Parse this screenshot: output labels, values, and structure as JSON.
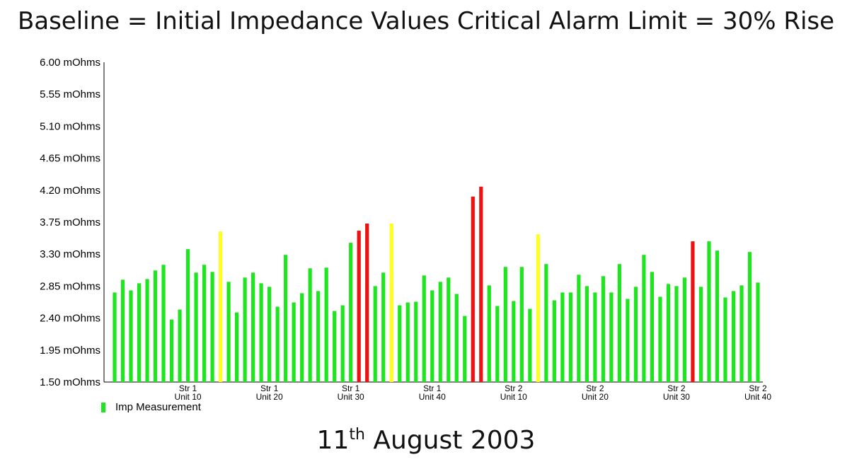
{
  "title": "Baseline = Initial Impedance Values Critical Alarm Limit = 30% Rise",
  "footer": {
    "day": "11",
    "suffix": "th",
    "rest": "August 2003"
  },
  "colors": {
    "normal": "#1ee61e",
    "warning": "#ffff22",
    "alarm": "#ee1111"
  },
  "chart_data": {
    "type": "bar",
    "title": "Baseline = Initial Impedance Values Critical Alarm Limit = 30% Rise",
    "ylim": [
      1.5,
      6.0
    ],
    "yticks": [
      {
        "value": 6.0,
        "label": "6.00 mOhms"
      },
      {
        "value": 5.55,
        "label": "5.55 mOhms"
      },
      {
        "value": 5.1,
        "label": "5.10 mOhms"
      },
      {
        "value": 4.65,
        "label": "4.65 mOhms"
      },
      {
        "value": 4.2,
        "label": "4.20 mOhms"
      },
      {
        "value": 3.75,
        "label": "3.75 mOhms"
      },
      {
        "value": 3.3,
        "label": "3.30 mOhms"
      },
      {
        "value": 2.85,
        "label": "2.85 mOhms"
      },
      {
        "value": 2.4,
        "label": "2.40 mOhms"
      },
      {
        "value": 1.95,
        "label": "1.95 mOhms"
      },
      {
        "value": 1.5,
        "label": "1.50 mOhms"
      }
    ],
    "xticks": [
      {
        "index": 9,
        "line1": "Str 1",
        "line2": "Unit 10"
      },
      {
        "index": 19,
        "line1": "Str 1",
        "line2": "Unit 20"
      },
      {
        "index": 29,
        "line1": "Str 1",
        "line2": "Unit 30"
      },
      {
        "index": 39,
        "line1": "Str 1",
        "line2": "Unit 40"
      },
      {
        "index": 49,
        "line1": "Str 2",
        "line2": "Unit 10"
      },
      {
        "index": 59,
        "line1": "Str 2",
        "line2": "Unit 20"
      },
      {
        "index": 69,
        "line1": "Str 2",
        "line2": "Unit 30"
      },
      {
        "index": 79,
        "line1": "Str 2",
        "line2": "Unit 40"
      }
    ],
    "legend": [
      {
        "label": "Imp Measurement",
        "status": "normal",
        "placement": "bottom-left"
      }
    ],
    "series": [
      {
        "name": "Imp Measurement",
        "values": [
          2.76,
          2.94,
          2.79,
          2.89,
          2.95,
          3.07,
          3.15,
          2.38,
          2.52,
          3.37,
          3.04,
          3.15,
          3.05,
          3.62,
          2.91,
          2.48,
          2.97,
          3.04,
          2.89,
          2.84,
          2.56,
          3.29,
          2.62,
          2.75,
          3.1,
          2.78,
          3.11,
          2.5,
          2.58,
          3.46,
          3.63,
          3.73,
          2.85,
          3.04,
          3.73,
          2.58,
          2.62,
          2.63,
          3.0,
          2.79,
          2.91,
          2.97,
          2.74,
          2.43,
          4.11,
          4.25,
          2.86,
          2.57,
          3.12,
          2.64,
          3.12,
          2.53,
          3.58,
          3.16,
          2.65,
          2.76,
          2.76,
          3.01,
          2.85,
          2.76,
          2.99,
          2.76,
          3.16,
          2.67,
          2.84,
          3.29,
          3.05,
          2.7,
          2.88,
          2.85,
          2.97,
          3.48,
          2.84,
          3.48,
          3.35,
          2.69,
          2.78,
          2.86,
          3.33,
          2.9
        ],
        "status": [
          "normal",
          "normal",
          "normal",
          "normal",
          "normal",
          "normal",
          "normal",
          "normal",
          "normal",
          "normal",
          "normal",
          "normal",
          "normal",
          "warning",
          "normal",
          "normal",
          "normal",
          "normal",
          "normal",
          "normal",
          "normal",
          "normal",
          "normal",
          "normal",
          "normal",
          "normal",
          "normal",
          "normal",
          "normal",
          "normal",
          "alarm",
          "alarm",
          "normal",
          "normal",
          "warning",
          "normal",
          "normal",
          "normal",
          "normal",
          "normal",
          "normal",
          "normal",
          "normal",
          "normal",
          "alarm",
          "alarm",
          "normal",
          "normal",
          "normal",
          "normal",
          "normal",
          "normal",
          "warning",
          "normal",
          "normal",
          "normal",
          "normal",
          "normal",
          "normal",
          "normal",
          "normal",
          "normal",
          "normal",
          "normal",
          "normal",
          "normal",
          "normal",
          "normal",
          "normal",
          "normal",
          "normal",
          "alarm",
          "normal",
          "normal",
          "normal",
          "normal",
          "normal",
          "normal",
          "normal",
          "normal"
        ]
      }
    ]
  }
}
